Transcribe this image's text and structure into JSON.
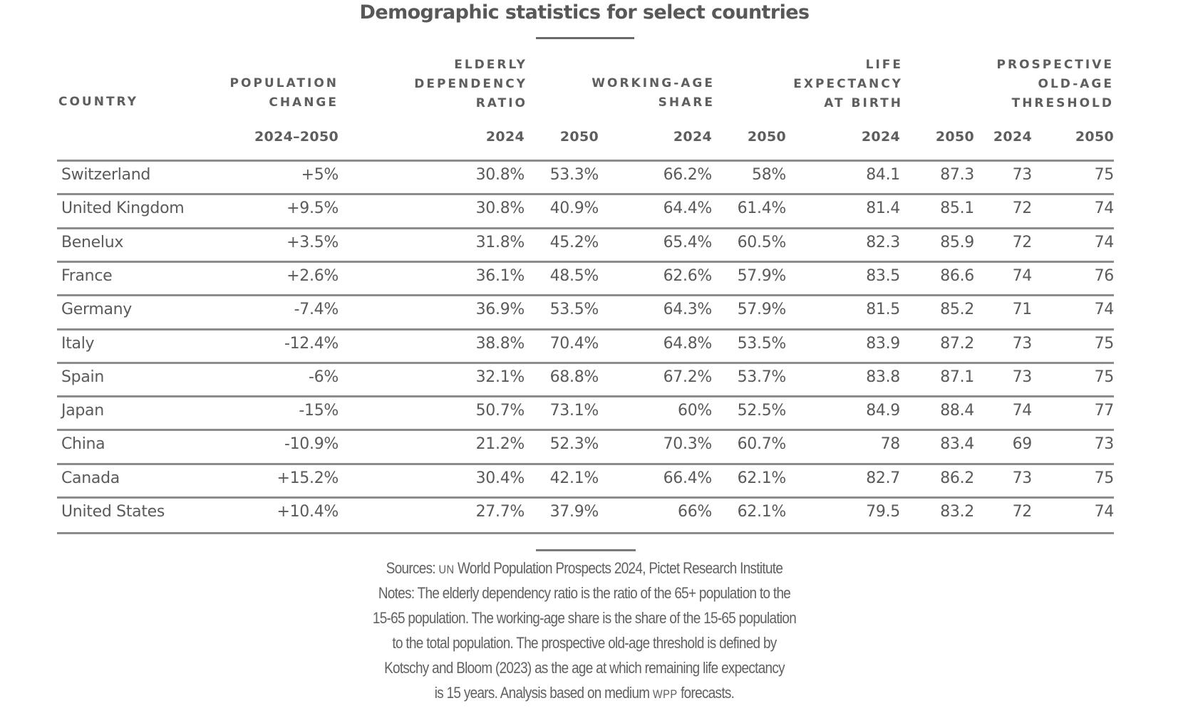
{
  "title": "Demographic statistics for select countries",
  "table": {
    "headers": {
      "country": "COUNTRY",
      "population_change": [
        "POPULATION",
        "CHANGE"
      ],
      "elderly_dependency": [
        "ELDERLY",
        "DEPENDENCY",
        "RATIO"
      ],
      "working_age": [
        "WORKING-AGE",
        "SHARE"
      ],
      "life_expectancy": [
        "LIFE",
        "EXPECTANCY",
        "AT BIRTH"
      ],
      "prospective_threshold": [
        "PROSPECTIVE",
        "OLD-AGE",
        "THRESHOLD"
      ]
    },
    "subheaders": {
      "population_change": "2024–2050",
      "year_2024": "2024",
      "year_2050": "2050"
    },
    "rows": [
      {
        "country": "Switzerland",
        "pop_change": "+5%",
        "edr_2024": "30.8%",
        "edr_2050": "53.3%",
        "was_2024": "66.2%",
        "was_2050": "58%",
        "le_2024": "84.1",
        "le_2050": "87.3",
        "pot_2024": "73",
        "pot_2050": "75"
      },
      {
        "country": "United Kingdom",
        "pop_change": "+9.5%",
        "edr_2024": "30.8%",
        "edr_2050": "40.9%",
        "was_2024": "64.4%",
        "was_2050": "61.4%",
        "le_2024": "81.4",
        "le_2050": "85.1",
        "pot_2024": "72",
        "pot_2050": "74"
      },
      {
        "country": "Benelux",
        "pop_change": "+3.5%",
        "edr_2024": "31.8%",
        "edr_2050": "45.2%",
        "was_2024": "65.4%",
        "was_2050": "60.5%",
        "le_2024": "82.3",
        "le_2050": "85.9",
        "pot_2024": "72",
        "pot_2050": "74"
      },
      {
        "country": "France",
        "pop_change": "+2.6%",
        "edr_2024": "36.1%",
        "edr_2050": "48.5%",
        "was_2024": "62.6%",
        "was_2050": "57.9%",
        "le_2024": "83.5",
        "le_2050": "86.6",
        "pot_2024": "74",
        "pot_2050": "76"
      },
      {
        "country": "Germany",
        "pop_change": "-7.4%",
        "edr_2024": "36.9%",
        "edr_2050": "53.5%",
        "was_2024": "64.3%",
        "was_2050": "57.9%",
        "le_2024": "81.5",
        "le_2050": "85.2",
        "pot_2024": "71",
        "pot_2050": "74"
      },
      {
        "country": "Italy",
        "pop_change": "-12.4%",
        "edr_2024": "38.8%",
        "edr_2050": "70.4%",
        "was_2024": "64.8%",
        "was_2050": "53.5%",
        "le_2024": "83.9",
        "le_2050": "87.2",
        "pot_2024": "73",
        "pot_2050": "75"
      },
      {
        "country": "Spain",
        "pop_change": "-6%",
        "edr_2024": "32.1%",
        "edr_2050": "68.8%",
        "was_2024": "67.2%",
        "was_2050": "53.7%",
        "le_2024": "83.8",
        "le_2050": "87.1",
        "pot_2024": "73",
        "pot_2050": "75"
      },
      {
        "country": "Japan",
        "pop_change": "-15%",
        "edr_2024": "50.7%",
        "edr_2050": "73.1%",
        "was_2024": "60%",
        "was_2050": "52.5%",
        "le_2024": "84.9",
        "le_2050": "88.4",
        "pot_2024": "74",
        "pot_2050": "77"
      },
      {
        "country": "China",
        "pop_change": "-10.9%",
        "edr_2024": "21.2%",
        "edr_2050": "52.3%",
        "was_2024": "70.3%",
        "was_2050": "60.7%",
        "le_2024": "78",
        "le_2050": "83.4",
        "pot_2024": "69",
        "pot_2050": "73"
      },
      {
        "country": "Canada",
        "pop_change": "+15.2%",
        "edr_2024": "30.4%",
        "edr_2050": "42.1%",
        "was_2024": "66.4%",
        "was_2050": "62.1%",
        "le_2024": "82.7",
        "le_2050": "86.2",
        "pot_2024": "73",
        "pot_2050": "75"
      },
      {
        "country": "United States",
        "pop_change": "+10.4%",
        "edr_2024": "27.7%",
        "edr_2050": "37.9%",
        "was_2024": "66%",
        "was_2050": "62.1%",
        "le_2024": "79.5",
        "le_2050": "83.2",
        "pot_2024": "72",
        "pot_2050": "74"
      }
    ]
  },
  "footnotes": {
    "sources_prefix": "Sources: ",
    "sources_un": "UN",
    "sources_rest": " World Population Prospects 2024, Pictet Research Institute",
    "notes_lines": [
      "Notes: The elderly dependency ratio is the ratio of the 65+ population to the",
      "15-65 population. The working-age share is the share of the 15-65 population",
      "to the total population. The prospective old-age threshold is defined by",
      "Kotschy and Bloom (2023) as the age at which remaining life expectancy"
    ],
    "last_line_prefix": "is 15 years. Analysis based on medium ",
    "last_line_wpp": "WPP",
    "last_line_suffix": " forecasts."
  }
}
